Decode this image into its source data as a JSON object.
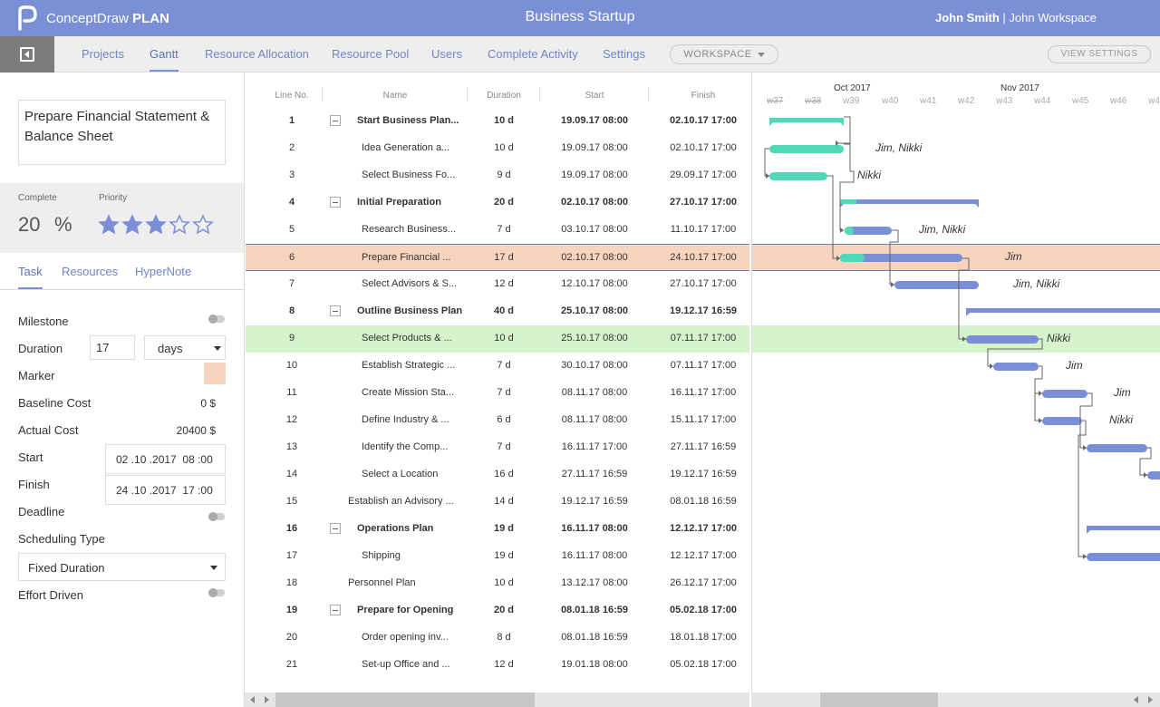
{
  "app": {
    "brand_name": "ConceptDraw",
    "brand_product": "PLAN",
    "project_title": "Business Startup",
    "user_name": "John Smith",
    "user_separator": " | ",
    "workspace_name": "John Workspace"
  },
  "nav": {
    "tabs": [
      "Projects",
      "Gantt",
      "Resource Allocation",
      "Resource Pool",
      "Users",
      "Complete Activity",
      "Settings"
    ],
    "active_tab": "Gantt",
    "workspace_label": "WORKSPACE",
    "view_settings_label": "VIEW SETTINGS"
  },
  "task_panel": {
    "task_name": "Prepare Financial Statement & Balance Sheet",
    "complete_label": "Complete",
    "priority_label": "Priority",
    "complete_value": "20",
    "percent_sign": "%",
    "priority_stars": 3,
    "priority_max": 5,
    "subtabs": [
      "Task",
      "Resources",
      "HyperNote"
    ],
    "active_subtab": "Task",
    "fields": {
      "milestone_label": "Milestone",
      "duration_label": "Duration",
      "duration_value": "17",
      "duration_unit": "days",
      "marker_label": "Marker",
      "marker_color": "#f8d3bd",
      "baseline_cost_label": "Baseline Cost",
      "baseline_cost_value": "0 $",
      "actual_cost_label": "Actual Cost",
      "actual_cost_value": "20400 $",
      "start_label": "Start",
      "start_value": "02 .10 .2017  08 :00",
      "finish_label": "Finish",
      "finish_value": "24 .10 .2017  17 :00",
      "deadline_label": "Deadline",
      "scheduling_type_label": "Scheduling Type",
      "scheduling_type_value": "Fixed Duration",
      "effort_driven_label": "Effort Driven"
    }
  },
  "table": {
    "headers": [
      "Line No.",
      "Name",
      "Duration",
      "Start",
      "Finish"
    ],
    "rows": [
      {
        "no": "1",
        "name": "Start Business Plan...",
        "duration": "10 d",
        "start": "19.09.17 08:00",
        "finish": "02.10.17 17:00",
        "summary": true,
        "level": 1
      },
      {
        "no": "2",
        "name": "Idea Generation a...",
        "duration": "10 d",
        "start": "19.09.17 08:00",
        "finish": "02.10.17 17:00",
        "summary": false,
        "level": 2
      },
      {
        "no": "3",
        "name": "Select Business Fo...",
        "duration": "9 d",
        "start": "19.09.17 08:00",
        "finish": "29.09.17 17:00",
        "summary": false,
        "level": 2
      },
      {
        "no": "4",
        "name": "Initial Preparation",
        "duration": "20 d",
        "start": "02.10.17 08:00",
        "finish": "27.10.17 17:00",
        "summary": true,
        "level": 1
      },
      {
        "no": "5",
        "name": "Research Business...",
        "duration": "7 d",
        "start": "03.10.17 08:00",
        "finish": "11.10.17 17:00",
        "summary": false,
        "level": 2
      },
      {
        "no": "6",
        "name": "Prepare Financial ...",
        "duration": "17 d",
        "start": "02.10.17 08:00",
        "finish": "24.10.17 17:00",
        "summary": false,
        "level": 2,
        "highlight": "selected"
      },
      {
        "no": "7",
        "name": "Select Advisors & S...",
        "duration": "12 d",
        "start": "12.10.17 08:00",
        "finish": "27.10.17 17:00",
        "summary": false,
        "level": 2
      },
      {
        "no": "8",
        "name": "Outline Business Plan",
        "duration": "40 d",
        "start": "25.10.17 08:00",
        "finish": "19.12.17 16:59",
        "summary": true,
        "level": 1
      },
      {
        "no": "9",
        "name": "Select Products & ...",
        "duration": "10 d",
        "start": "25.10.17 08:00",
        "finish": "07.11.17 17:00",
        "summary": false,
        "level": 2,
        "highlight": "green"
      },
      {
        "no": "10",
        "name": "Establish Strategic ...",
        "duration": "7 d",
        "start": "30.10.17 08:00",
        "finish": "07.11.17 17:00",
        "summary": false,
        "level": 2
      },
      {
        "no": "11",
        "name": "Create Mission Sta...",
        "duration": "7 d",
        "start": "08.11.17 08:00",
        "finish": "16.11.17 17:00",
        "summary": false,
        "level": 2
      },
      {
        "no": "12",
        "name": "Define Industry & ...",
        "duration": "6 d",
        "start": "08.11.17 08:00",
        "finish": "15.11.17 17:00",
        "summary": false,
        "level": 2
      },
      {
        "no": "13",
        "name": "Identify the Comp...",
        "duration": "7 d",
        "start": "16.11.17 17:00",
        "finish": "27.11.17 16:59",
        "summary": false,
        "level": 2
      },
      {
        "no": "14",
        "name": "Select a Location",
        "duration": "16 d",
        "start": "27.11.17 16:59",
        "finish": "19.12.17 16:59",
        "summary": false,
        "level": 2
      },
      {
        "no": "15",
        "name": "Establish an Advisory ...",
        "duration": "14 d",
        "start": "19.12.17 16:59",
        "finish": "08.01.18 16:59",
        "summary": false,
        "level": 0
      },
      {
        "no": "16",
        "name": "Operations Plan",
        "duration": "19 d",
        "start": "16.11.17 08:00",
        "finish": "12.12.17 17:00",
        "summary": true,
        "level": 1
      },
      {
        "no": "17",
        "name": "Shipping",
        "duration": "19 d",
        "start": "16.11.17 08:00",
        "finish": "12.12.17 17:00",
        "summary": false,
        "level": 2
      },
      {
        "no": "18",
        "name": "Personnel Plan",
        "duration": "10 d",
        "start": "13.12.17 08:00",
        "finish": "26.12.17 17:00",
        "summary": false,
        "level": 0
      },
      {
        "no": "19",
        "name": "Prepare for Opening",
        "duration": "20 d",
        "start": "08.01.18 16:59",
        "finish": "05.02.18 17:00",
        "summary": true,
        "level": 1
      },
      {
        "no": "20",
        "name": "Order opening inv...",
        "duration": "8 d",
        "start": "08.01.18 16:59",
        "finish": "18.01.18 17:00",
        "summary": false,
        "level": 2
      },
      {
        "no": "21",
        "name": "Set-up Office and ...",
        "duration": "12 d",
        "start": "19.01.18 08:00",
        "finish": "05.02.18 17:00",
        "summary": false,
        "level": 2
      }
    ]
  },
  "gantt": {
    "months": [
      "Oct 2017",
      "Nov 2017"
    ],
    "weeks": [
      "w37",
      "w38",
      "w39",
      "w40",
      "w41",
      "w42",
      "w43",
      "w44",
      "w45",
      "w46",
      "w4"
    ],
    "resources": [
      "",
      "Jim, Nikki",
      "Nikki",
      "",
      "Jim, Nikki",
      "Jim",
      "Jim, Nikki",
      "",
      "Nikki",
      "Jim",
      "Jim",
      "Nikki",
      "",
      "",
      "",
      "",
      "",
      "",
      "",
      "",
      ""
    ],
    "colors": {
      "progress": "#4fd9b8",
      "bar": "#7b8fd6",
      "selected_row": "#f8d3bd",
      "green_row": "#d6f3cc",
      "header": "#7b8fd6"
    }
  }
}
